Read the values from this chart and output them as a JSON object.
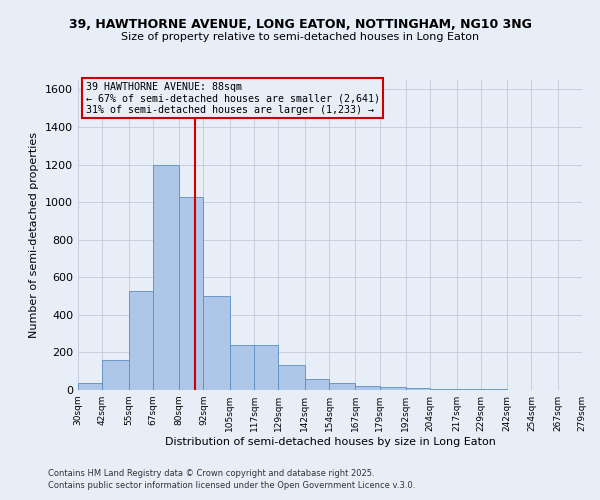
{
  "title1": "39, HAWTHORNE AVENUE, LONG EATON, NOTTINGHAM, NG10 3NG",
  "title2": "Size of property relative to semi-detached houses in Long Eaton",
  "xlabel": "Distribution of semi-detached houses by size in Long Eaton",
  "ylabel": "Number of semi-detached properties",
  "footer1": "Contains HM Land Registry data © Crown copyright and database right 2025.",
  "footer2": "Contains public sector information licensed under the Open Government Licence v.3.0.",
  "annotation_line1": "39 HAWTHORNE AVENUE: 88sqm",
  "annotation_line2": "← 67% of semi-detached houses are smaller (2,641)",
  "annotation_line3": "31% of semi-detached houses are larger (1,233) →",
  "property_sqm": 88,
  "bins": [
    30,
    42,
    55,
    67,
    80,
    92,
    105,
    117,
    129,
    142,
    154,
    167,
    179,
    192,
    204,
    217,
    229,
    242,
    254,
    267,
    279
  ],
  "counts": [
    35,
    160,
    525,
    1200,
    1025,
    500,
    240,
    240,
    135,
    60,
    35,
    20,
    15,
    10,
    5,
    5,
    3,
    2,
    2,
    2
  ],
  "bar_color": "#aec6e8",
  "bar_edge_color": "#5a8fc0",
  "line_color": "#cc0000",
  "annotation_box_color": "#cc0000",
  "background_color": "#e8eef8",
  "grid_color": "#c0c8dc",
  "ylim": [
    0,
    1650
  ],
  "yticks": [
    0,
    200,
    400,
    600,
    800,
    1000,
    1200,
    1400,
    1600
  ]
}
